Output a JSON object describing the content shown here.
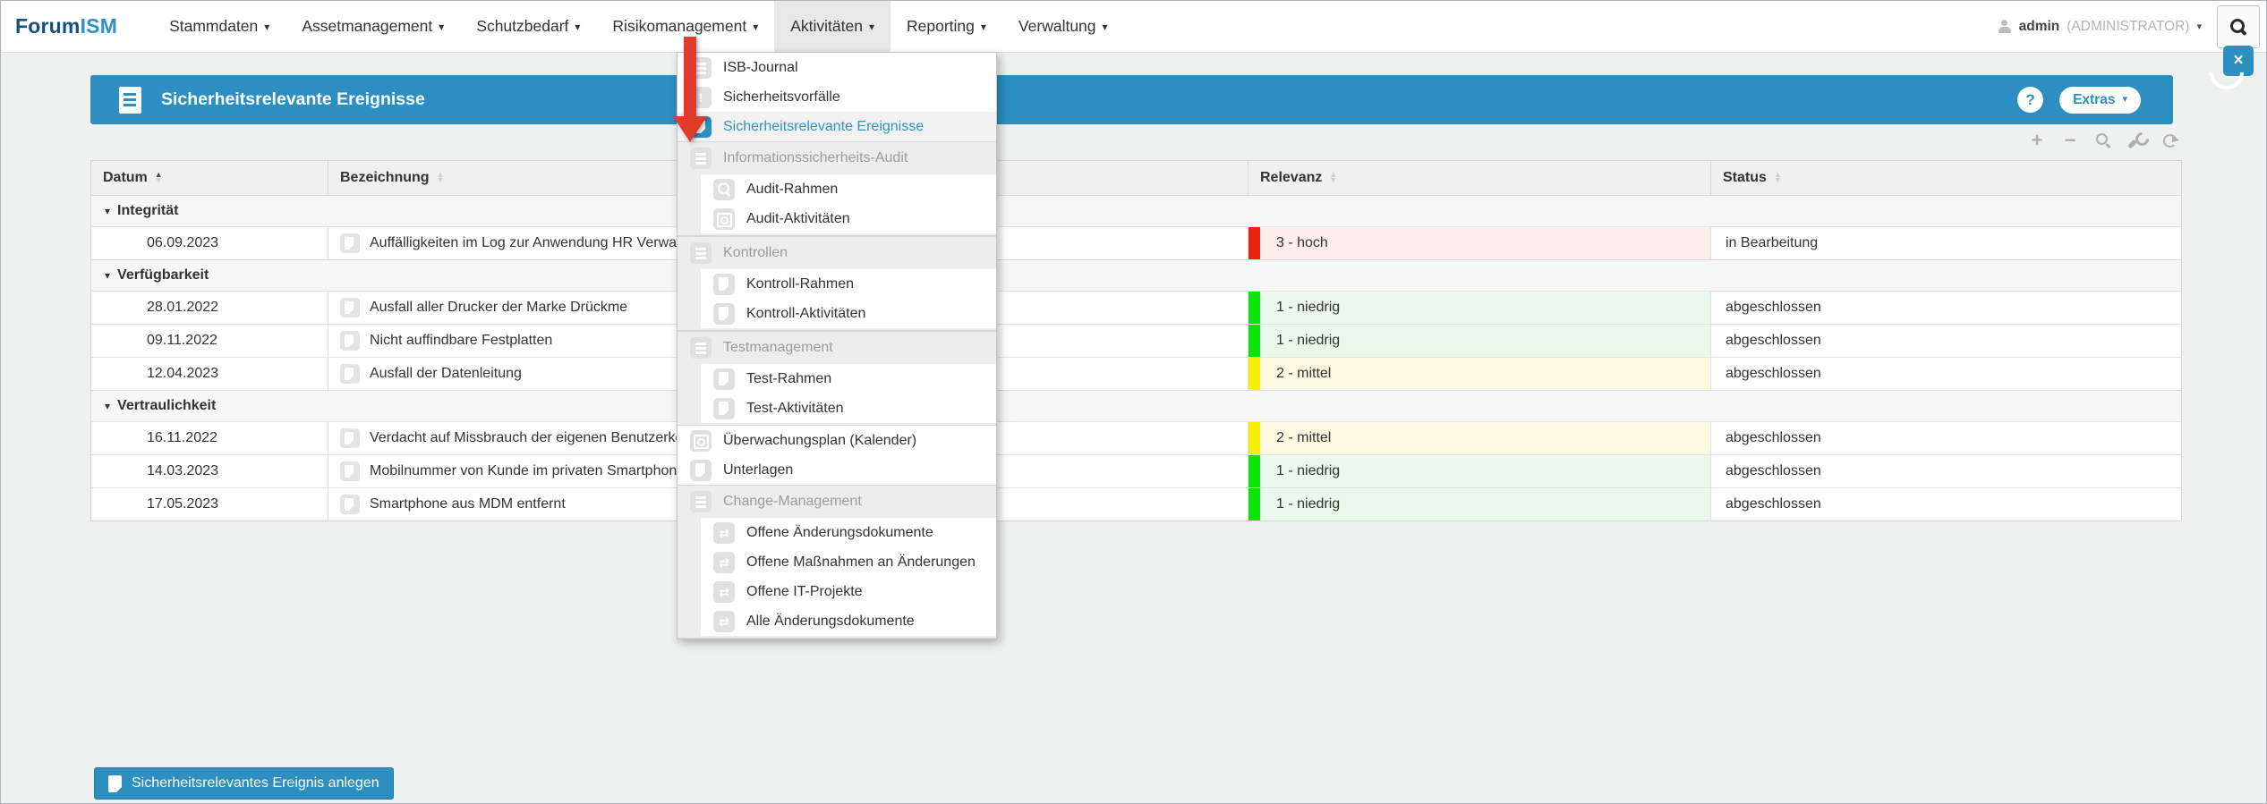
{
  "brand": {
    "primary": "Forum",
    "secondary": "ISM"
  },
  "icons": {
    "caret_glyph": "▾",
    "sort_up": "▲",
    "sort_down": "▼",
    "group_collapse_glyph": "▾",
    "help_glyph": "?",
    "close_glyph": "×",
    "alert_glyph": "!",
    "change_glyph": "⇄",
    "plus_glyph": "+",
    "minus_glyph": "−"
  },
  "nav": {
    "items": [
      {
        "label": "Stammdaten"
      },
      {
        "label": "Assetmanagement"
      },
      {
        "label": "Schutzbedarf"
      },
      {
        "label": "Risikomanagement"
      },
      {
        "label": "Aktivitäten",
        "active": true
      },
      {
        "label": "Reporting"
      },
      {
        "label": "Verwaltung"
      }
    ],
    "user": {
      "name": "admin",
      "role": "(ADMINISTRATOR)"
    }
  },
  "menu": {
    "items": [
      {
        "label": "ISB-Journal",
        "icon": "journal-icon"
      },
      {
        "label": "Sicherheitsvorfälle",
        "icon": "alert-icon"
      },
      {
        "label": "Sicherheitsrelevante Ereignisse",
        "icon": "document-icon",
        "selected": true
      },
      {
        "label": "Informationssicherheits-Audit",
        "icon": "list-icon",
        "section": true
      },
      {
        "label": "Audit-Rahmen",
        "icon": "magnifier-icon"
      },
      {
        "label": "Audit-Aktivitäten",
        "icon": "calendar-search-icon"
      },
      {
        "label": "Kontrollen",
        "icon": "list-icon",
        "section": true
      },
      {
        "label": "Kontroll-Rahmen",
        "icon": "document-icon"
      },
      {
        "label": "Kontroll-Aktivitäten",
        "icon": "document-icon"
      },
      {
        "label": "Testmanagement",
        "icon": "list-icon",
        "section": true
      },
      {
        "label": "Test-Rahmen",
        "icon": "document-icon"
      },
      {
        "label": "Test-Aktivitäten",
        "icon": "document-icon"
      },
      {
        "label": "Überwachungsplan (Kalender)",
        "icon": "calendar-search-icon"
      },
      {
        "label": "Unterlagen",
        "icon": "document-icon"
      },
      {
        "label": "Change-Management",
        "icon": "list-icon",
        "section": true
      },
      {
        "label": "Offene Änderungsdokumente",
        "icon": "change-icon"
      },
      {
        "label": "Offene Maßnahmen an Änderungen",
        "icon": "change-icon"
      },
      {
        "label": "Offene IT-Projekte",
        "icon": "change-icon"
      },
      {
        "label": "Alle Änderungsdokumente",
        "icon": "change-icon"
      }
    ]
  },
  "panel": {
    "title": "Sicherheitsrelevante Ereignisse",
    "extras_label": "Extras"
  },
  "table": {
    "columns": [
      {
        "label": "Datum",
        "sorted": "asc"
      },
      {
        "label": "Bezeichnung",
        "sorted": "none"
      },
      {
        "label": "Relevanz",
        "sorted": "none"
      },
      {
        "label": "Status",
        "sorted": "none"
      }
    ],
    "groups": [
      {
        "label": "Integrität",
        "rows": [
          {
            "date": "06.09.2023",
            "name": "Auffälligkeiten im Log zur Anwendung HR Verwaltung",
            "relevance": "3 - hoch",
            "relevance_level": "hoch",
            "status": "in Bearbeitung"
          }
        ]
      },
      {
        "label": "Verfügbarkeit",
        "rows": [
          {
            "date": "28.01.2022",
            "name": "Ausfall aller Drucker der Marke Drückme",
            "relevance": "1 - niedrig",
            "relevance_level": "niedrig",
            "status": "abgeschlossen"
          },
          {
            "date": "09.11.2022",
            "name": "Nicht auffindbare Festplatten",
            "relevance": "1 - niedrig",
            "relevance_level": "niedrig",
            "status": "abgeschlossen"
          },
          {
            "date": "12.04.2023",
            "name": "Ausfall der Datenleitung",
            "relevance": "2 - mittel",
            "relevance_level": "mittel",
            "status": "abgeschlossen"
          }
        ]
      },
      {
        "label": "Vertraulichkeit",
        "rows": [
          {
            "date": "16.11.2022",
            "name": "Verdacht auf Missbrauch der eigenen Benutzerkennung",
            "relevance": "2 - mittel",
            "relevance_level": "mittel",
            "status": "abgeschlossen"
          },
          {
            "date": "14.03.2023",
            "name": "Mobilnummer von Kunde im privaten Smartphone",
            "relevance": "1 - niedrig",
            "relevance_level": "niedrig",
            "status": "abgeschlossen"
          },
          {
            "date": "17.05.2023",
            "name": "Smartphone aus MDM entfernt",
            "relevance": "1 - niedrig",
            "relevance_level": "niedrig",
            "status": "abgeschlossen"
          }
        ]
      }
    ]
  },
  "footer": {
    "create_label": "Sicherheitsrelevantes Ereignis anlegen"
  },
  "colors": {
    "accent_blue": "#2d8fc1",
    "logo_dark": "#15517d",
    "logo_light": "#2d92c6",
    "relevance_high_bar": "#e8250c",
    "relevance_high_bg": "#fdeeec",
    "relevance_low_bar": "#0ce30a",
    "relevance_low_bg": "#ebf9eb",
    "relevance_medium_bar": "#f8ef00",
    "relevance_medium_bg": "#fcfae0",
    "annotation_arrow_red": "#e23b2c"
  }
}
